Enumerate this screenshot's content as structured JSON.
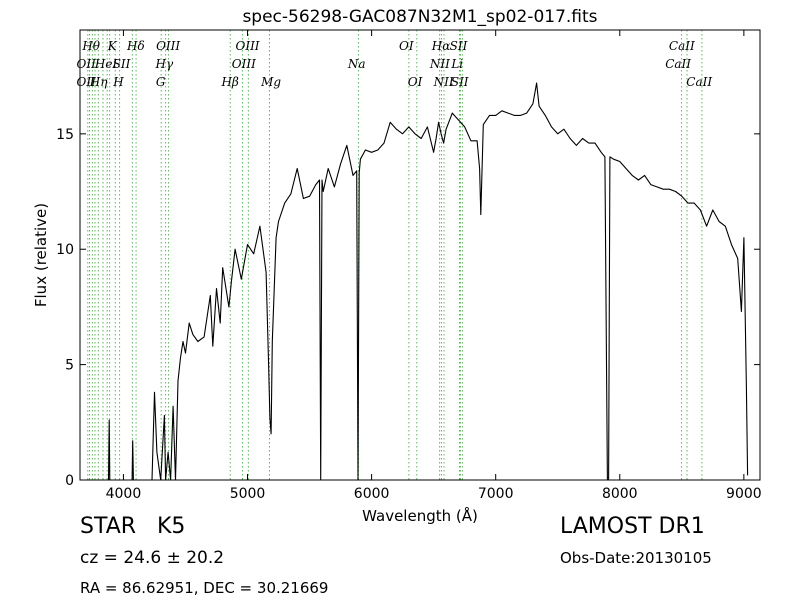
{
  "chart_data": {
    "type": "line",
    "title": "spec-56298-GAC087N32M1_sp02-017.fits",
    "xlabel": "Wavelength (Å)",
    "ylabel": "Flux (relative)",
    "xlim": [
      3650,
      9130
    ],
    "ylim": [
      0,
      19.5
    ],
    "xticks": [
      4000,
      5000,
      6000,
      7000,
      8000,
      9000
    ],
    "yticks": [
      0,
      5,
      10,
      15
    ],
    "grid": false,
    "series": [
      {
        "values_x": [
          3700,
          3750,
          3800,
          3850,
          3880,
          3885,
          3890,
          3900,
          3950,
          4000,
          4050,
          4070,
          4075,
          4080,
          4100,
          4150,
          4200,
          4230,
          4250,
          4270,
          4300,
          4330,
          4340,
          4360,
          4380,
          4400,
          4420,
          4440,
          4460,
          4480,
          4500,
          4530,
          4560,
          4600,
          4650,
          4700,
          4720,
          4750,
          4780,
          4800,
          4850,
          4870,
          4900,
          4950,
          5000,
          5050,
          5100,
          5150,
          5170,
          5180,
          5190,
          5200,
          5230,
          5250,
          5300,
          5350,
          5400,
          5450,
          5500,
          5550,
          5580,
          5590,
          5600,
          5610,
          5650,
          5700,
          5750,
          5800,
          5850,
          5880,
          5890,
          5900,
          5910,
          5950,
          6000,
          6050,
          6100,
          6150,
          6200,
          6250,
          6300,
          6350,
          6400,
          6450,
          6500,
          6520,
          6540,
          6560,
          6580,
          6600,
          6650,
          6700,
          6750,
          6800,
          6850,
          6870,
          6880,
          6900,
          6950,
          7000,
          7050,
          7100,
          7150,
          7200,
          7250,
          7300,
          7330,
          7350,
          7400,
          7450,
          7500,
          7550,
          7600,
          7650,
          7700,
          7750,
          7800,
          7850,
          7880,
          7900,
          7910,
          7920,
          7950,
          8000,
          8050,
          8100,
          8150,
          8200,
          8250,
          8300,
          8350,
          8400,
          8450,
          8500,
          8550,
          8600,
          8650,
          8700,
          8750,
          8800,
          8850,
          8900,
          8950,
          8980,
          9000,
          9020,
          9030
        ],
        "values_y": [
          0,
          0,
          0,
          0,
          0,
          2.6,
          0,
          0,
          0,
          0,
          0,
          0,
          1.7,
          0,
          0,
          0,
          0,
          0,
          3.8,
          1.2,
          0,
          2.8,
          0,
          1.2,
          0,
          3.2,
          0,
          4.3,
          5.3,
          6.0,
          5.5,
          6.8,
          6.3,
          6.0,
          6.2,
          8.0,
          5.8,
          8.3,
          6.8,
          9.2,
          7.5,
          8.6,
          10.0,
          8.7,
          10.2,
          9.8,
          11.0,
          9.0,
          5.0,
          2.7,
          2.0,
          6.0,
          10.5,
          11.2,
          12.0,
          12.4,
          13.5,
          12.2,
          12.3,
          12.8,
          13.0,
          0,
          13.0,
          12.5,
          13.5,
          12.7,
          13.7,
          14.5,
          13.2,
          13.4,
          0,
          13.3,
          13.9,
          14.3,
          14.2,
          14.3,
          14.6,
          15.5,
          15.2,
          15.0,
          15.3,
          15.0,
          14.8,
          15.3,
          14.2,
          14.8,
          15.5,
          15.0,
          14.6,
          15.2,
          15.9,
          15.6,
          15.3,
          14.7,
          14.7,
          13.5,
          11.5,
          15.4,
          15.8,
          15.8,
          16.0,
          15.9,
          15.8,
          15.8,
          15.9,
          16.3,
          17.2,
          16.2,
          15.8,
          15.3,
          15.0,
          15.2,
          14.8,
          14.5,
          14.8,
          14.6,
          14.6,
          14.2,
          14.0,
          0,
          0,
          14.0,
          13.9,
          13.8,
          13.5,
          13.2,
          13.0,
          13.2,
          12.8,
          12.7,
          12.6,
          12.6,
          12.5,
          12.3,
          12.0,
          12.0,
          11.7,
          11.0,
          11.7,
          11.2,
          11.0,
          10.2,
          9.6,
          7.3,
          10.5,
          4.0,
          0.2
        ]
      }
    ],
    "lines": [
      {
        "wl": 3713,
        "name": "OII"
      },
      {
        "wl": 3727,
        "name": "OII"
      },
      {
        "wl": 3750,
        "name": ""
      },
      {
        "wl": 3771,
        "name": ""
      },
      {
        "wl": 3798,
        "name": ""
      },
      {
        "wl": 3835,
        "name": "Hη"
      },
      {
        "wl": 3869,
        "name": "HeI"
      },
      {
        "wl": 3889,
        "name": "Hθ"
      },
      {
        "wl": 3934,
        "name": "K"
      },
      {
        "wl": 3969,
        "name": "H"
      },
      {
        "wl": 4072,
        "name": "SII"
      },
      {
        "wl": 4102,
        "name": "Hδ"
      },
      {
        "wl": 4304,
        "name": "G"
      },
      {
        "wl": 4340,
        "name": "Hγ"
      },
      {
        "wl": 4363,
        "name": "OIII"
      },
      {
        "wl": 4861,
        "name": "Hβ"
      },
      {
        "wl": 4959,
        "name": "OIII"
      },
      {
        "wl": 5007,
        "name": "OIII"
      },
      {
        "wl": 5177,
        "name": "Mg"
      },
      {
        "wl": 5894,
        "name": "Na"
      },
      {
        "wl": 6300,
        "name": "OI"
      },
      {
        "wl": 6364,
        "name": "OI"
      },
      {
        "wl": 6548,
        "name": "NII"
      },
      {
        "wl": 6563,
        "name": "Hα"
      },
      {
        "wl": 6583,
        "name": "NII"
      },
      {
        "wl": 6708,
        "name": "Li"
      },
      {
        "wl": 6716,
        "name": "SII"
      },
      {
        "wl": 6731,
        "name": "SII"
      },
      {
        "wl": 8498,
        "name": "CaII"
      },
      {
        "wl": 8542,
        "name": "CaII"
      },
      {
        "wl": 8662,
        "name": "CaII"
      }
    ],
    "line_labels": [
      {
        "text": "Hθ",
        "wl": 3740,
        "row": 1
      },
      {
        "text": "OII",
        "wl": 3700,
        "row": 2
      },
      {
        "text": "OII",
        "wl": 3700,
        "row": 3
      },
      {
        "text": "K",
        "wl": 3910,
        "row": 1
      },
      {
        "text": "HeI",
        "wl": 3860,
        "row": 2
      },
      {
        "text": "Hη",
        "wl": 3800,
        "row": 3
      },
      {
        "text": "SII",
        "wl": 3985,
        "row": 2
      },
      {
        "text": "H",
        "wl": 3960,
        "row": 3
      },
      {
        "text": "Hδ",
        "wl": 4100,
        "row": 1
      },
      {
        "text": "OIII",
        "wl": 4360,
        "row": 1
      },
      {
        "text": "Hγ",
        "wl": 4330,
        "row": 2
      },
      {
        "text": "G",
        "wl": 4300,
        "row": 3
      },
      {
        "text": "OIII",
        "wl": 5000,
        "row": 1
      },
      {
        "text": "OIII",
        "wl": 4970,
        "row": 2
      },
      {
        "text": "Hβ",
        "wl": 4860,
        "row": 3
      },
      {
        "text": "Mg",
        "wl": 5190,
        "row": 3
      },
      {
        "text": "Na",
        "wl": 5880,
        "row": 2
      },
      {
        "text": "OI",
        "wl": 6280,
        "row": 1
      },
      {
        "text": "OI",
        "wl": 6350,
        "row": 3
      },
      {
        "text": "Hα",
        "wl": 6560,
        "row": 1
      },
      {
        "text": "SII",
        "wl": 6700,
        "row": 1
      },
      {
        "text": "NII",
        "wl": 6550,
        "row": 2
      },
      {
        "text": "Li",
        "wl": 6690,
        "row": 2
      },
      {
        "text": "NII",
        "wl": 6580,
        "row": 3
      },
      {
        "text": "SII",
        "wl": 6710,
        "row": 3
      },
      {
        "text": "CaII",
        "wl": 8500,
        "row": 1
      },
      {
        "text": "CaII",
        "wl": 8470,
        "row": 2
      },
      {
        "text": "CaII",
        "wl": 8640,
        "row": 3
      }
    ]
  },
  "info": {
    "object_class": "STAR",
    "subclass": "K5",
    "cz": "cz = 24.6 ± 20.2",
    "coords": "RA = 86.62951, DEC = 30.21669",
    "survey": "LAMOST DR1",
    "obs_date": "Obs-Date:20130105"
  },
  "colors": {
    "spectrum": "#000000",
    "line_marker": "#5cb85c",
    "axes": "#000000"
  }
}
